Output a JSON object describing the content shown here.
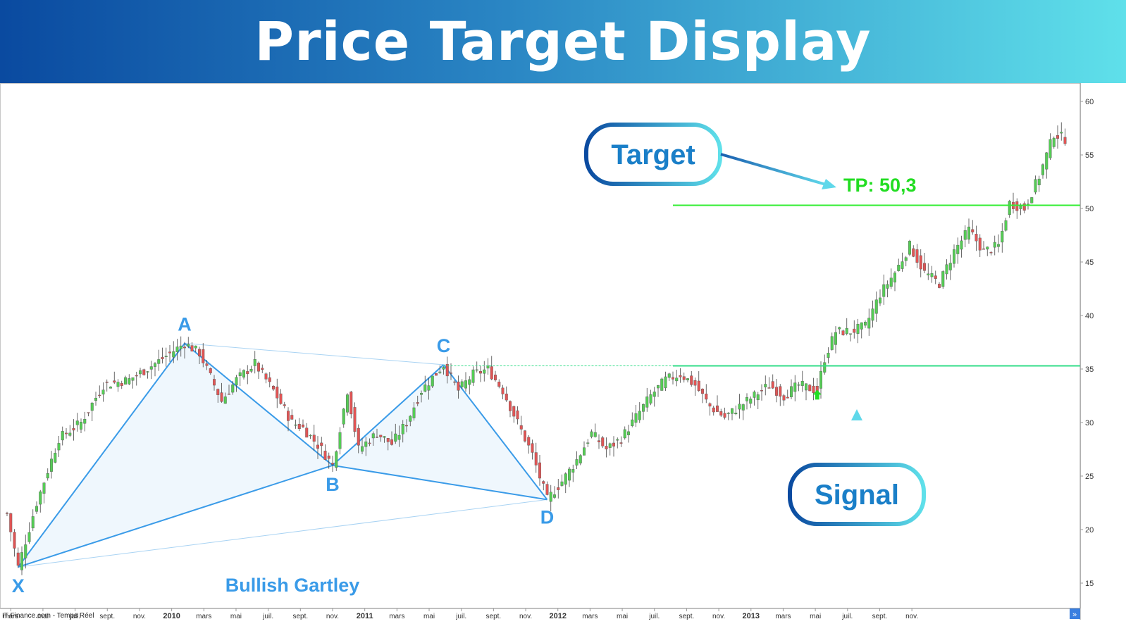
{
  "header": {
    "title": "Price Target Display"
  },
  "watermark": "IT-Finance.com - Temps Réel",
  "pattern_name": "Bullish Gartley",
  "callouts": {
    "target": "Target",
    "signal": "Signal",
    "tp_label": "TP: 50,3"
  },
  "colors": {
    "header_start": "#0a4aa0",
    "header_end": "#5fe0ea",
    "pattern": "#3a9be8",
    "target_line": "#33ee33",
    "breakout_line": "#33dd88",
    "bull_candle": "#55cc55",
    "bear_candle": "#e05555",
    "callout_border_start": "#0a4aa0",
    "callout_border_end": "#5fe0ea",
    "callout_text": "#1a7fc8",
    "tp_text": "#22dd22"
  },
  "chart_data": {
    "type": "candlestick",
    "title": "Price Target Display",
    "y_ticks": [
      "15",
      "20",
      "25",
      "30",
      "35",
      "40",
      "45",
      "50",
      "55",
      "60"
    ],
    "ylim": [
      13.5,
      61.5
    ],
    "x_ticks": [
      "mars",
      "mai",
      "juil.",
      "sept.",
      "nov.",
      "2010",
      "mars",
      "mai",
      "juil.",
      "sept.",
      "nov.",
      "2011",
      "mars",
      "mai",
      "juil.",
      "sept.",
      "nov.",
      "2012",
      "mars",
      "mai",
      "juil.",
      "sept.",
      "nov.",
      "2013",
      "mars",
      "mai",
      "juil.",
      "sept.",
      "nov."
    ],
    "x_start": "2009-02",
    "pattern": {
      "name": "Bullish Gartley",
      "points": [
        {
          "label": "X",
          "week": 3,
          "price": 16.5
        },
        {
          "label": "A",
          "week": 48,
          "price": 37.4
        },
        {
          "label": "B",
          "week": 88,
          "price": 26.0
        },
        {
          "label": "C",
          "week": 118,
          "price": 35.4
        },
        {
          "label": "D",
          "week": 146,
          "price": 22.8
        }
      ]
    },
    "breakout_level": 35.3,
    "target_level": 50.3,
    "target_label": "TP: 50,3",
    "signal_week": 219,
    "signal_price": 33.0,
    "price_anchors": [
      [
        0,
        21.5
      ],
      [
        3,
        16.5
      ],
      [
        8,
        22.5
      ],
      [
        14,
        28.5
      ],
      [
        20,
        30.0
      ],
      [
        26,
        33.5
      ],
      [
        33,
        34.0
      ],
      [
        40,
        35.5
      ],
      [
        48,
        37.4
      ],
      [
        52,
        36.5
      ],
      [
        58,
        32.0
      ],
      [
        62,
        34.0
      ],
      [
        67,
        35.5
      ],
      [
        72,
        33.0
      ],
      [
        77,
        30.0
      ],
      [
        80,
        29.5
      ],
      [
        85,
        27.5
      ],
      [
        88,
        26.0
      ],
      [
        92,
        33.0
      ],
      [
        95,
        27.5
      ],
      [
        100,
        29.0
      ],
      [
        104,
        28.0
      ],
      [
        108,
        30.0
      ],
      [
        112,
        33.0
      ],
      [
        118,
        35.4
      ],
      [
        122,
        33.0
      ],
      [
        126,
        34.5
      ],
      [
        130,
        35.0
      ],
      [
        134,
        33.0
      ],
      [
        138,
        30.0
      ],
      [
        142,
        27.0
      ],
      [
        146,
        22.8
      ],
      [
        150,
        24.5
      ],
      [
        154,
        26.5
      ],
      [
        158,
        29.0
      ],
      [
        162,
        27.5
      ],
      [
        166,
        28.5
      ],
      [
        170,
        30.5
      ],
      [
        174,
        32.5
      ],
      [
        178,
        34.0
      ],
      [
        182,
        34.5
      ],
      [
        186,
        33.5
      ],
      [
        190,
        31.5
      ],
      [
        194,
        30.5
      ],
      [
        198,
        31.5
      ],
      [
        202,
        32.5
      ],
      [
        206,
        33.5
      ],
      [
        210,
        32.5
      ],
      [
        214,
        33.5
      ],
      [
        219,
        33.0
      ],
      [
        221,
        36.0
      ],
      [
        224,
        38.5
      ],
      [
        228,
        38.5
      ],
      [
        232,
        39.0
      ],
      [
        236,
        42.0
      ],
      [
        240,
        44.0
      ],
      [
        244,
        46.5
      ],
      [
        248,
        44.0
      ],
      [
        252,
        43.0
      ],
      [
        256,
        46.0
      ],
      [
        260,
        48.0
      ],
      [
        264,
        46.0
      ],
      [
        268,
        46.5
      ],
      [
        271,
        50.5
      ],
      [
        275,
        50.0
      ],
      [
        279,
        53.0
      ],
      [
        283,
        57.0
      ],
      [
        286,
        56.5
      ]
    ]
  }
}
